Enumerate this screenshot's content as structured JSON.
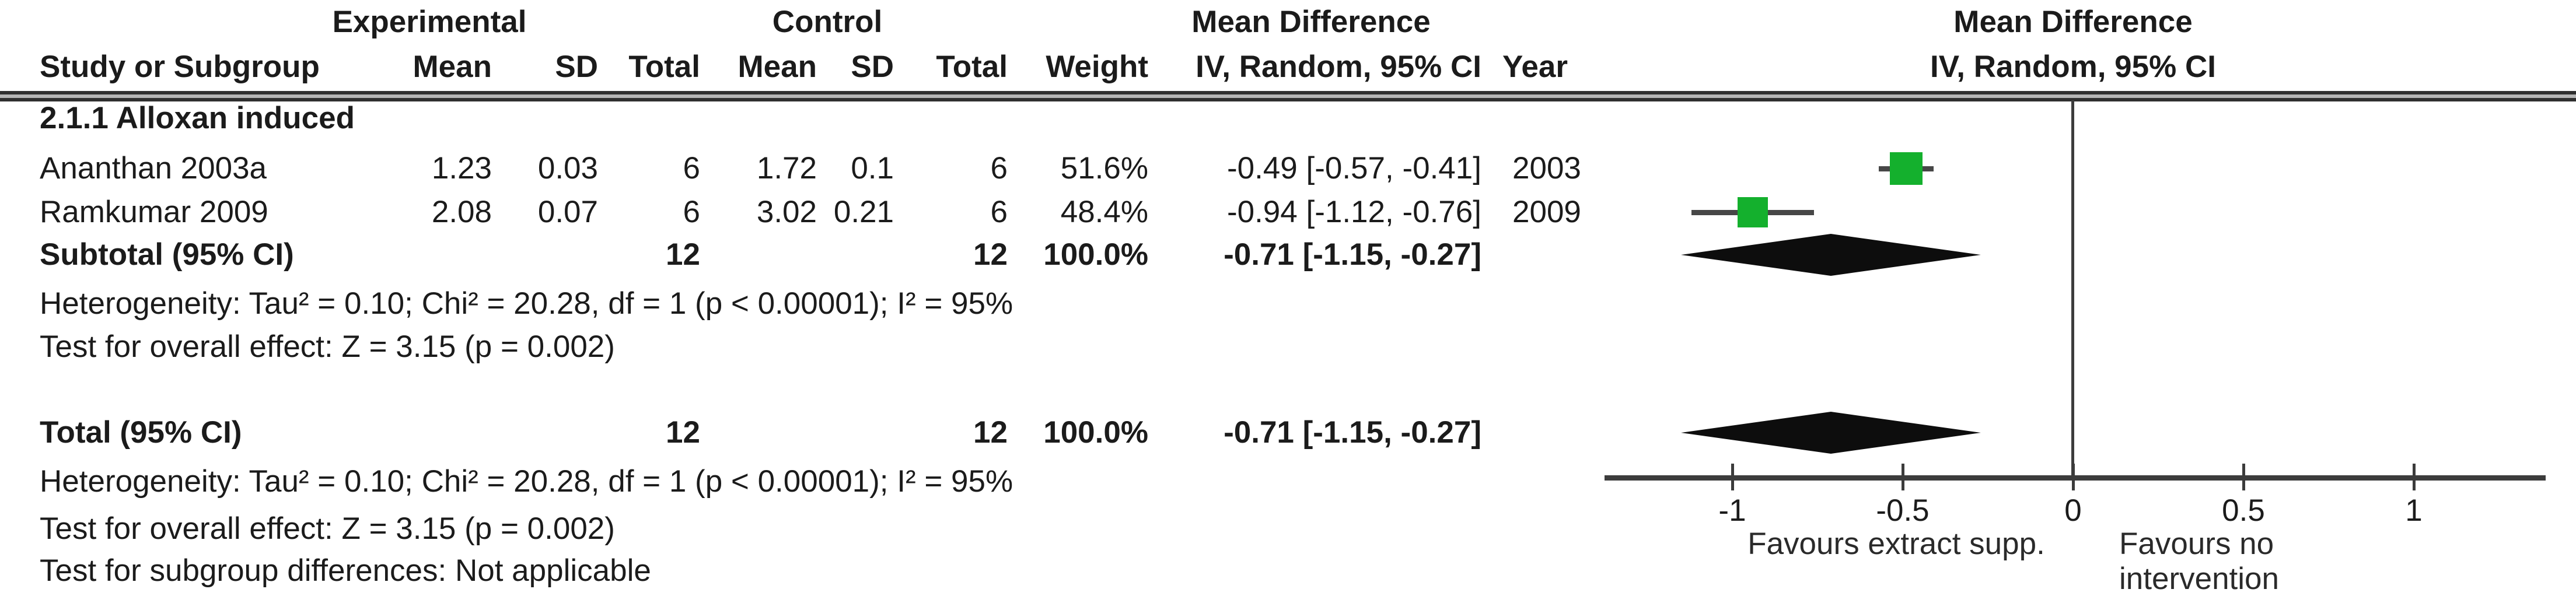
{
  "table": {
    "group_headers": {
      "experimental": "Experimental",
      "control": "Control",
      "mean_difference": "Mean Difference"
    },
    "columns": {
      "study": "Study or Subgroup",
      "mean": "Mean",
      "sd": "SD",
      "total": "Total",
      "weight": "Weight",
      "ci": "IV, Random, 95% CI",
      "year": "Year"
    },
    "subgroup_title": "2.1.1 Alloxan induced",
    "studies": [
      {
        "name": "Ananthan 2003a",
        "mean_e": "1.23",
        "sd_e": "0.03",
        "total_e": "6",
        "mean_c": "1.72",
        "sd_c": "0.1",
        "total_c": "6",
        "weight": "51.6%",
        "ci": "-0.49 [-0.57, -0.41]",
        "year": "2003"
      },
      {
        "name": "Ramkumar 2009",
        "mean_e": "2.08",
        "sd_e": "0.07",
        "total_e": "6",
        "mean_c": "3.02",
        "sd_c": "0.21",
        "total_c": "6",
        "weight": "48.4%",
        "ci": "-0.94 [-1.12, -0.76]",
        "year": "2009"
      }
    ],
    "subtotal": {
      "label": "Subtotal (95% CI)",
      "total_e": "12",
      "total_c": "12",
      "weight": "100.0%",
      "ci": "-0.71 [-1.15, -0.27]"
    },
    "subgroup_heterogeneity": "Heterogeneity: Tau² = 0.10; Chi² = 20.28, df = 1 (p < 0.00001); I² = 95%",
    "subgroup_overall_effect": "Test for overall effect: Z = 3.15 (p = 0.002)",
    "total": {
      "label": "Total (95% CI)",
      "total_e": "12",
      "total_c": "12",
      "weight": "100.0%",
      "ci": "-0.71 [-1.15, -0.27]"
    },
    "total_heterogeneity": "Heterogeneity: Tau² = 0.10; Chi² = 20.28, df = 1 (p < 0.00001); I² = 95%",
    "total_overall_effect": "Test for overall effect: Z = 3.15 (p = 0.002)",
    "subgroup_differences": "Test for subgroup differences: Not applicable"
  },
  "plot": {
    "mean_difference_header": "Mean Difference",
    "method_header": "IV, Random, 95% CI",
    "favours_left": "Favours extract supp.",
    "favours_right": "Favours no intervention",
    "marker_color": "#14b02d",
    "diamond_color": "#0d0d0d",
    "line_color": "#474747",
    "axis_color": "#3c3c3c"
  },
  "chart_data": {
    "type": "scatter",
    "subtype": "forest-plot",
    "title": "Mean Difference",
    "method": "IV, Random, 95% CI",
    "studies": [
      {
        "name": "Ananthan 2003a",
        "year": 2003,
        "md": -0.49,
        "ci_low": -0.57,
        "ci_high": -0.41,
        "weight_pct": 51.6
      },
      {
        "name": "Ramkumar 2009",
        "year": 2009,
        "md": -0.94,
        "ci_low": -1.12,
        "ci_high": -0.76,
        "weight_pct": 48.4
      }
    ],
    "subtotal": {
      "label": "Subtotal (95% CI)",
      "md": -0.71,
      "ci_low": -1.15,
      "ci_high": -0.27
    },
    "total": {
      "label": "Total (95% CI)",
      "md": -0.71,
      "ci_low": -1.15,
      "ci_high": -0.27
    },
    "heterogeneity": {
      "tau2": 0.1,
      "chi2": 20.28,
      "df": 1,
      "p": "< 0.00001",
      "i2_pct": 95
    },
    "overall_effect": {
      "z": 3.15,
      "p": "= 0.002"
    },
    "xticks": [
      -1,
      -0.5,
      0,
      0.5,
      1
    ],
    "xlim": [
      -1.38,
      1.39
    ],
    "grid": false,
    "xlabel_left": "Favours extract supp.",
    "xlabel_right": "Favours no intervention"
  }
}
